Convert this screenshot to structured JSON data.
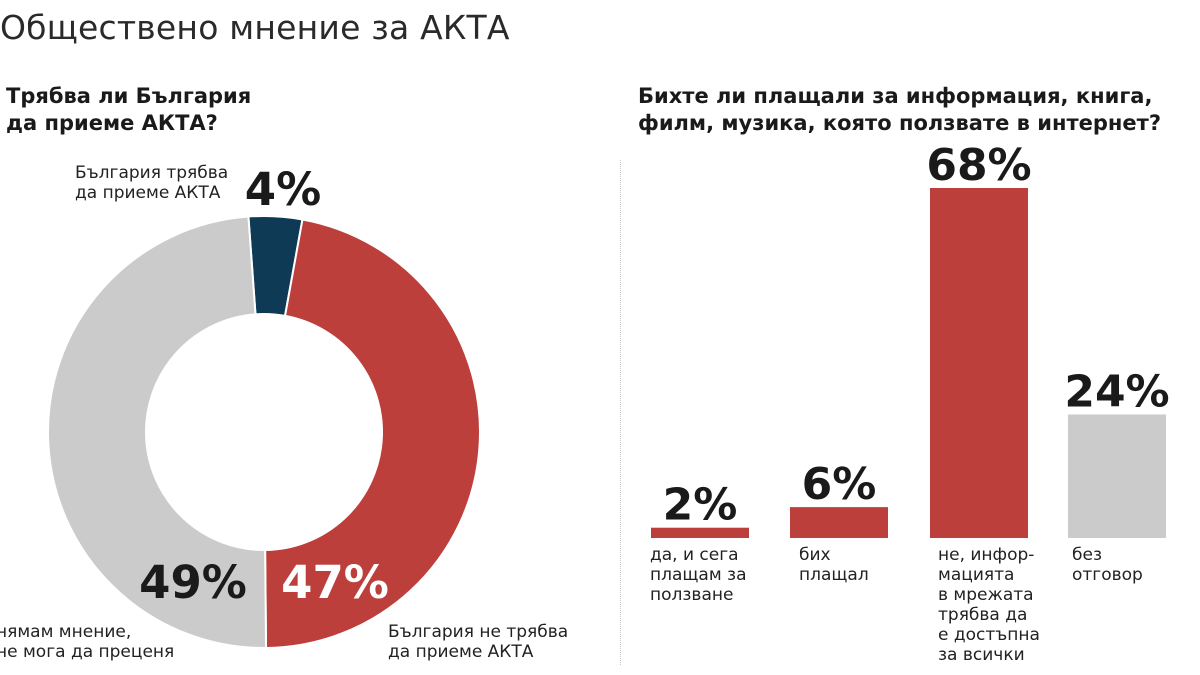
{
  "title": "Обществено мнение за АКТА",
  "colors": {
    "red": "#bd3f3c",
    "navy": "#0f3a55",
    "gray": "#cbcbcb",
    "text_dark": "#1a1a1a",
    "text_white": "#ffffff"
  },
  "chart_data": [
    {
      "type": "pie",
      "title_lines": [
        "Трябва ли България",
        "да приеме АКТА?"
      ],
      "slices": [
        {
          "value": 4,
          "label_text": "4%",
          "color": "#0f3a55",
          "category_lines": [
            "България трябва",
            "да приеме АКТА"
          ]
        },
        {
          "value": 47,
          "label_text": "47%",
          "color": "#bd3f3c",
          "category_lines": [
            "България не трябва",
            "да приеме АКТА"
          ]
        },
        {
          "value": 49,
          "label_text": "49%",
          "color": "#cbcbcb",
          "category_lines": [
            "нямам мнение,",
            "не мога да преценя"
          ]
        }
      ],
      "donut": true
    },
    {
      "type": "bar",
      "title_lines": [
        "Бихте ли плащали за информация, книга,",
        "филм, музика, която ползвате в интернет?"
      ],
      "ylim": [
        0,
        68
      ],
      "bars": [
        {
          "value": 2,
          "label_text": "2%",
          "color": "#bd3f3c",
          "category_lines": [
            "да, и сега",
            "плащам за",
            "ползване"
          ]
        },
        {
          "value": 6,
          "label_text": "6%",
          "color": "#bd3f3c",
          "category_lines": [
            "бих",
            "плащал"
          ]
        },
        {
          "value": 68,
          "label_text": "68%",
          "color": "#bd3f3c",
          "category_lines": [
            "не, инфор-",
            "мацията",
            "в мрежата",
            "трябва да",
            "е достъпна",
            "за всички"
          ]
        },
        {
          "value": 24,
          "label_text": "24%",
          "color": "#cbcbcb",
          "category_lines": [
            "без",
            "отговор"
          ]
        }
      ]
    }
  ]
}
